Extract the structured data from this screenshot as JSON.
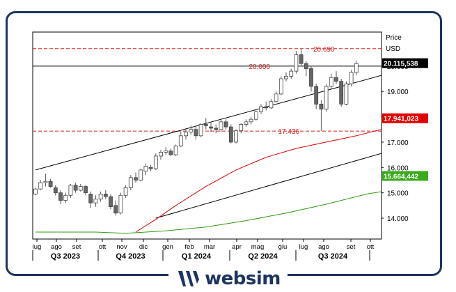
{
  "brand": {
    "name": "websim",
    "logo_icon": "websim-w-logo-icon",
    "color": "#1d3461"
  },
  "chart_data": {
    "type": "candlestick",
    "price_label": "Price",
    "currency_label": "USD",
    "y_ticks": [
      "14.000",
      "15.000",
      "16.000",
      "17.000",
      "18.000",
      "19.000",
      "20.000"
    ],
    "ylim": [
      13400,
      21300
    ],
    "month_labels": [
      "lug",
      "ago",
      "set",
      "ott",
      "nov",
      "dic",
      "gen",
      "feb",
      "mar",
      "apr",
      "mag",
      "giu",
      "lug",
      "ago",
      "set",
      "ott"
    ],
    "quarters": [
      "Q3 2023",
      "Q4 2023",
      "Q1 2024",
      "Q2 2024",
      "Q3 2024"
    ],
    "levels": [
      {
        "label": "20.690",
        "value": 20690,
        "style": "dashed",
        "color": "#d42020"
      },
      {
        "label": "20.000",
        "value": 20000,
        "style": "solid",
        "color": "#000000"
      },
      {
        "label": "17.436",
        "value": 17436,
        "style": "dashed",
        "color": "#d42020"
      }
    ],
    "badges": [
      {
        "label": "20.115,538",
        "value": 20115.538,
        "color": "#000000",
        "text_color": "#ffffff"
      },
      {
        "label": "17.941,023",
        "value": 17941.023,
        "color": "#e00000",
        "text_color": "#ffffff"
      },
      {
        "label": "15.664,442",
        "value": 15664.442,
        "color": "#3aaa1a",
        "text_color": "#ffffff"
      }
    ],
    "channel": {
      "upper": [
        [
          0,
          15900
        ],
        [
          98,
          21200
        ]
      ],
      "lower": [
        [
          24,
          14000
        ],
        [
          98,
          18200
        ]
      ]
    },
    "ma_red": [
      [
        20,
        13450
      ],
      [
        24,
        13950
      ],
      [
        28,
        14500
      ],
      [
        34,
        15250
      ],
      [
        40,
        15900
      ],
      [
        46,
        16400
      ],
      [
        52,
        16750
      ],
      [
        58,
        17000
      ],
      [
        64,
        17250
      ],
      [
        70,
        17550
      ],
      [
        76,
        17750
      ],
      [
        84,
        17941
      ]
    ],
    "ma_green": [
      [
        0,
        13450
      ],
      [
        12,
        13450
      ],
      [
        18,
        13400
      ],
      [
        26,
        13500
      ],
      [
        34,
        13650
      ],
      [
        42,
        13900
      ],
      [
        50,
        14200
      ],
      [
        58,
        14550
      ],
      [
        66,
        14950
      ],
      [
        74,
        15200
      ],
      [
        80,
        15500
      ],
      [
        84,
        15664
      ]
    ],
    "candles": [
      [
        14950,
        15200,
        14900,
        15150
      ],
      [
        15150,
        15500,
        15100,
        15400
      ],
      [
        15400,
        15750,
        15250,
        15450
      ],
      [
        15450,
        15550,
        15200,
        15250
      ],
      [
        15200,
        15300,
        14900,
        15000
      ],
      [
        15000,
        15100,
        14550,
        14700
      ],
      [
        14700,
        15000,
        14600,
        14900
      ],
      [
        14900,
        15350,
        14800,
        15300
      ],
      [
        15300,
        15400,
        15000,
        15100
      ],
      [
        15100,
        15350,
        15050,
        15250
      ],
      [
        15250,
        15300,
        14900,
        15000
      ],
      [
        14950,
        15050,
        14400,
        14600
      ],
      [
        14600,
        14900,
        14450,
        14750
      ],
      [
        14750,
        15050,
        14650,
        14950
      ],
      [
        14950,
        15100,
        14750,
        14850
      ],
      [
        14850,
        14950,
        14350,
        14450
      ],
      [
        14500,
        14700,
        14100,
        14200
      ],
      [
        14200,
        15000,
        14150,
        14900
      ],
      [
        14900,
        15300,
        14800,
        15200
      ],
      [
        15200,
        15700,
        15100,
        15600
      ],
      [
        15600,
        15800,
        15400,
        15500
      ],
      [
        15500,
        15950,
        15450,
        15900
      ],
      [
        15850,
        16150,
        15700,
        16050
      ],
      [
        16000,
        16100,
        15850,
        15950
      ],
      [
        15950,
        16550,
        15900,
        16450
      ],
      [
        16450,
        16700,
        16300,
        16600
      ],
      [
        16600,
        16800,
        16500,
        16650
      ],
      [
        16650,
        16750,
        16450,
        16500
      ],
      [
        16500,
        16900,
        16450,
        16850
      ],
      [
        16850,
        17400,
        16800,
        17250
      ],
      [
        17250,
        17550,
        17100,
        17400
      ],
      [
        17400,
        17650,
        17300,
        17500
      ],
      [
        17500,
        17650,
        17100,
        17250
      ],
      [
        17250,
        17750,
        17200,
        17700
      ],
      [
        17700,
        17950,
        17500,
        17650
      ],
      [
        17600,
        17800,
        17400,
        17550
      ],
      [
        17550,
        17700,
        17350,
        17500
      ],
      [
        17500,
        17900,
        17400,
        17800
      ],
      [
        17800,
        17900,
        17500,
        17600
      ],
      [
        17600,
        17700,
        16950,
        17000
      ],
      [
        17000,
        17500,
        16950,
        17450
      ],
      [
        17450,
        17750,
        17350,
        17700
      ],
      [
        17700,
        17900,
        17600,
        17800
      ],
      [
        17800,
        18000,
        17700,
        17900
      ],
      [
        17900,
        18250,
        17850,
        18200
      ],
      [
        18200,
        18500,
        18100,
        18400
      ],
      [
        18400,
        18600,
        18250,
        18350
      ],
      [
        18350,
        18700,
        18300,
        18600
      ],
      [
        18600,
        19000,
        18550,
        18900
      ],
      [
        18900,
        19600,
        18850,
        19500
      ],
      [
        19500,
        19750,
        19400,
        19600
      ],
      [
        19600,
        19900,
        19500,
        19800
      ],
      [
        19800,
        20600,
        19700,
        20450
      ],
      [
        20450,
        20690,
        20000,
        20100
      ],
      [
        20100,
        20200,
        19600,
        19900
      ],
      [
        19900,
        20000,
        19000,
        19200
      ],
      [
        19200,
        19300,
        18300,
        18500
      ],
      [
        18500,
        18650,
        17436,
        18300
      ],
      [
        18300,
        19300,
        18200,
        19200
      ],
      [
        19200,
        19700,
        19100,
        19550
      ],
      [
        19550,
        19800,
        19300,
        19400
      ],
      [
        19400,
        19500,
        18400,
        18500
      ],
      [
        18500,
        19400,
        18450,
        19300
      ],
      [
        19300,
        19850,
        19200,
        19750
      ],
      [
        19750,
        20200,
        19650,
        20100
      ]
    ]
  }
}
